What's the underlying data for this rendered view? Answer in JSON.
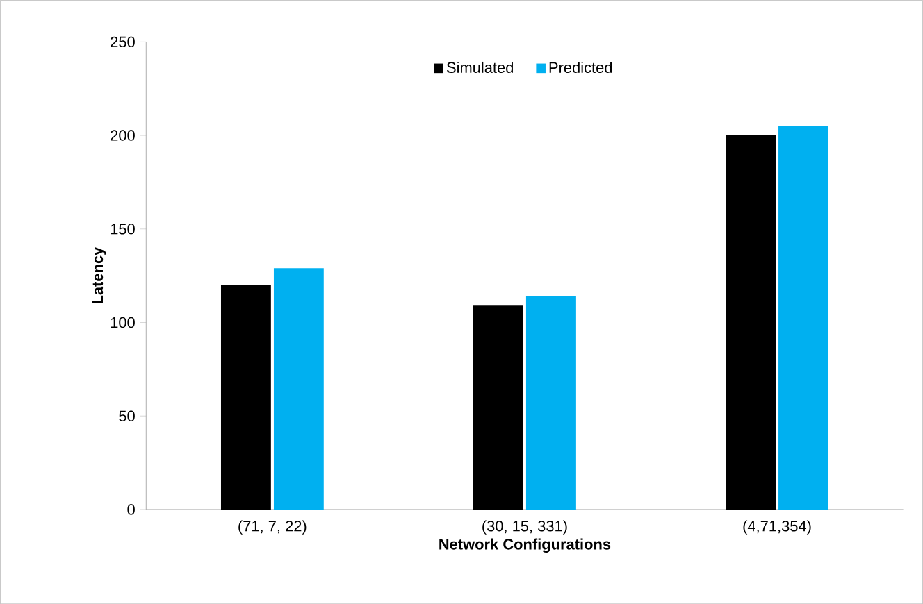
{
  "chart_data": {
    "type": "bar",
    "xlabel": "Network Configurations",
    "ylabel": "Latency",
    "categories": [
      "(71, 7, 22)",
      "(30, 15, 331)",
      "(4,71,354)"
    ],
    "series": [
      {
        "name": "Simulated",
        "color": "#000000",
        "values": [
          120,
          109,
          200
        ]
      },
      {
        "name": "Predicted",
        "color": "#00b0f0",
        "values": [
          129,
          114,
          205
        ]
      }
    ],
    "ylim": [
      0,
      250
    ],
    "yticks": [
      0,
      50,
      100,
      150,
      200,
      250
    ],
    "grid": false,
    "legend": "top"
  }
}
